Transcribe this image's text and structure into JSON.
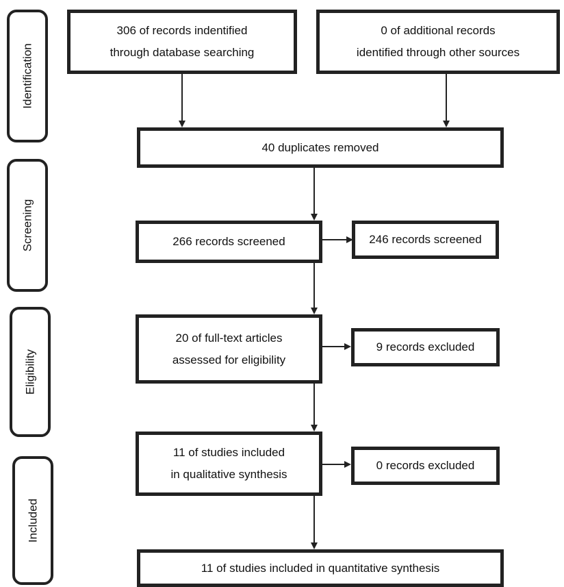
{
  "stages": {
    "identification": "Identification",
    "screening": "Screening",
    "eligibility": "Eligibility",
    "included": "Included"
  },
  "boxes": {
    "database_records": [
      "306 of records indentified",
      "through database searching"
    ],
    "additional_records": [
      "0 of additional records",
      "identified through other sources"
    ],
    "duplicates_removed": "40 duplicates removed",
    "records_screened": "266 records screened",
    "screened_side": "246 records screened",
    "fulltext_assessed": [
      "20 of full-text articles",
      "assessed for eligibility"
    ],
    "excluded_eligibility": "9 records excluded",
    "qualitative_included": [
      "11 of studies included",
      "in qualitative synthesis"
    ],
    "excluded_qualitative": "0 records excluded",
    "quantitative_included": "11 of studies included in quantitative synthesis"
  }
}
